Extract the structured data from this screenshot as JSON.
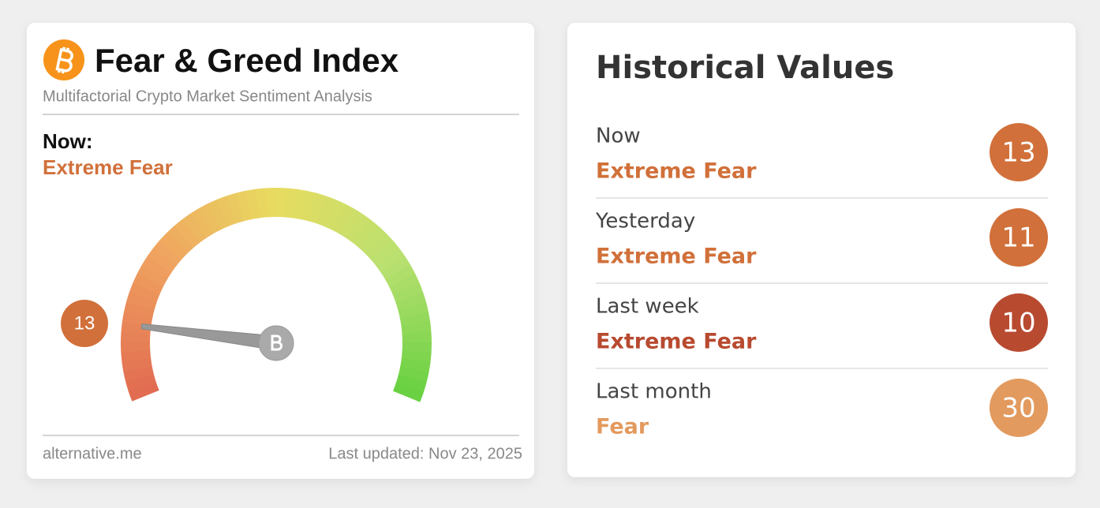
{
  "header": {
    "title": "Fear & Greed Index",
    "subtitle": "Multifactorial Crypto Market Sentiment Analysis"
  },
  "now": {
    "label": "Now:",
    "classification": "Extreme Fear",
    "color": "#d1703a"
  },
  "gauge": {
    "value": 13,
    "range": [
      0,
      100
    ],
    "color": "#d1703a"
  },
  "footer": {
    "source": "alternative.me",
    "updated": "Last updated: Nov 23, 2025"
  },
  "history": {
    "title": "Historical Values",
    "rows": [
      {
        "period": "Now",
        "classification": "Extreme Fear",
        "value": 13,
        "color": "#d1703a"
      },
      {
        "period": "Yesterday",
        "classification": "Extreme Fear",
        "value": 11,
        "color": "#d1703a"
      },
      {
        "period": "Last week",
        "classification": "Extreme Fear",
        "value": 10,
        "color": "#b84a30"
      },
      {
        "period": "Last month",
        "classification": "Fear",
        "value": 30,
        "color": "#e39a5e"
      }
    ]
  }
}
